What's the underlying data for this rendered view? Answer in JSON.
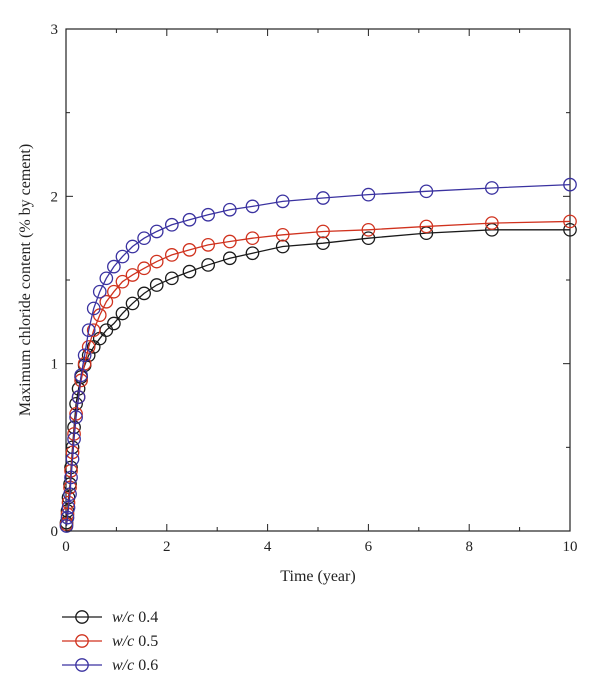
{
  "chart_data": {
    "type": "line",
    "xlabel": "Time (year)",
    "ylabel": "Maximum chloride content (% by cement)",
    "xlim": [
      0,
      10
    ],
    "ylim": [
      0,
      3
    ],
    "xticks": [
      0,
      2,
      4,
      6,
      8,
      10
    ],
    "yticks": [
      0,
      1,
      2,
      3
    ],
    "grid": false,
    "legend_position": "bottom-left, below plot",
    "series": [
      {
        "name": "w/c 0.4",
        "legend_italic": "w/c",
        "legend_value": "0.4",
        "color": "#1a1a1a",
        "x": [
          0.01,
          0.03,
          0.05,
          0.08,
          0.1,
          0.13,
          0.16,
          0.2,
          0.25,
          0.3,
          0.37,
          0.45,
          0.55,
          0.67,
          0.8,
          0.95,
          1.12,
          1.32,
          1.55,
          1.8,
          2.1,
          2.45,
          2.82,
          3.25,
          3.7,
          4.3,
          5.1,
          6.0,
          7.15,
          8.45,
          10.0
        ],
        "y": [
          0.05,
          0.12,
          0.2,
          0.28,
          0.38,
          0.5,
          0.62,
          0.76,
          0.85,
          0.92,
          0.99,
          1.05,
          1.1,
          1.15,
          1.2,
          1.24,
          1.3,
          1.36,
          1.42,
          1.47,
          1.51,
          1.55,
          1.59,
          1.63,
          1.66,
          1.7,
          1.72,
          1.75,
          1.78,
          1.8,
          1.8
        ]
      },
      {
        "name": "w/c 0.5",
        "legend_italic": "w/c",
        "legend_value": "0.5",
        "color": "#d0321e",
        "x": [
          0.01,
          0.03,
          0.05,
          0.08,
          0.1,
          0.13,
          0.16,
          0.2,
          0.25,
          0.3,
          0.37,
          0.45,
          0.55,
          0.67,
          0.8,
          0.95,
          1.12,
          1.32,
          1.55,
          1.8,
          2.1,
          2.45,
          2.82,
          3.25,
          3.7,
          4.3,
          5.1,
          6.0,
          7.15,
          8.45,
          10.0
        ],
        "y": [
          0.04,
          0.1,
          0.17,
          0.26,
          0.36,
          0.47,
          0.58,
          0.7,
          0.8,
          0.9,
          1.0,
          1.1,
          1.2,
          1.29,
          1.37,
          1.43,
          1.49,
          1.53,
          1.57,
          1.61,
          1.65,
          1.68,
          1.71,
          1.73,
          1.75,
          1.77,
          1.79,
          1.8,
          1.82,
          1.84,
          1.85
        ]
      },
      {
        "name": "w/c 0.6",
        "legend_italic": "w/c",
        "legend_value": "0.6",
        "color": "#3a32a0",
        "x": [
          0.01,
          0.03,
          0.05,
          0.08,
          0.1,
          0.13,
          0.16,
          0.2,
          0.25,
          0.3,
          0.37,
          0.45,
          0.55,
          0.67,
          0.8,
          0.95,
          1.12,
          1.32,
          1.55,
          1.8,
          2.1,
          2.45,
          2.82,
          3.25,
          3.7,
          4.3,
          5.1,
          6.0,
          7.15,
          8.45,
          10.0
        ],
        "y": [
          0.03,
          0.08,
          0.14,
          0.22,
          0.32,
          0.43,
          0.55,
          0.68,
          0.8,
          0.93,
          1.05,
          1.2,
          1.33,
          1.43,
          1.51,
          1.58,
          1.64,
          1.7,
          1.75,
          1.79,
          1.83,
          1.86,
          1.89,
          1.92,
          1.94,
          1.97,
          1.99,
          2.01,
          2.03,
          2.05,
          2.07
        ]
      }
    ]
  }
}
